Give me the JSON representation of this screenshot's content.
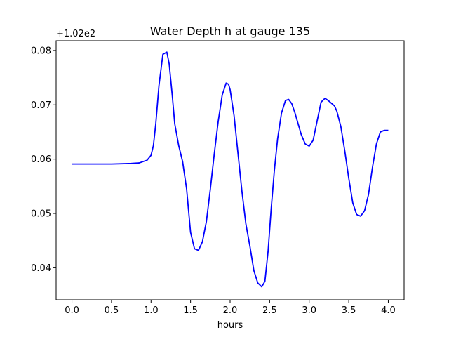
{
  "chart_data": {
    "type": "line",
    "title": "Water Depth h at gauge 135",
    "xlabel": "hours",
    "ylabel": "",
    "offset_label": "+1.02e2",
    "xlim": [
      -0.2,
      4.2
    ],
    "ylim": [
      0.0341,
      0.0818
    ],
    "x_ticks": [
      0.0,
      0.5,
      1.0,
      1.5,
      2.0,
      2.5,
      3.0,
      3.5,
      4.0
    ],
    "x_tick_labels": [
      "0.0",
      "0.5",
      "1.0",
      "1.5",
      "2.0",
      "2.5",
      "3.0",
      "3.5",
      "4.0"
    ],
    "y_ticks": [
      0.04,
      0.05,
      0.06,
      0.07,
      0.08
    ],
    "y_tick_labels": [
      "0.04",
      "0.05",
      "0.06",
      "0.07",
      "0.08"
    ],
    "grid": false,
    "series": [
      {
        "color": "#0000ff",
        "x": [
          0.0,
          0.25,
          0.5,
          0.75,
          0.85,
          0.95,
          1.0,
          1.03,
          1.06,
          1.1,
          1.15,
          1.2,
          1.23,
          1.27,
          1.3,
          1.35,
          1.4,
          1.45,
          1.5,
          1.55,
          1.6,
          1.65,
          1.7,
          1.75,
          1.8,
          1.85,
          1.9,
          1.95,
          1.98,
          2.0,
          2.05,
          2.1,
          2.15,
          2.2,
          2.25,
          2.3,
          2.35,
          2.4,
          2.44,
          2.48,
          2.52,
          2.56,
          2.6,
          2.65,
          2.7,
          2.74,
          2.78,
          2.82,
          2.86,
          2.9,
          2.95,
          3.0,
          3.05,
          3.1,
          3.15,
          3.2,
          3.24,
          3.28,
          3.32,
          3.35,
          3.4,
          3.45,
          3.5,
          3.55,
          3.6,
          3.65,
          3.7,
          3.75,
          3.8,
          3.85,
          3.9,
          3.95,
          4.0
        ],
        "y": [
          0.0591,
          0.0591,
          0.0591,
          0.0592,
          0.0593,
          0.0598,
          0.0607,
          0.0625,
          0.0665,
          0.0735,
          0.0793,
          0.0797,
          0.0775,
          0.0715,
          0.0665,
          0.0625,
          0.0595,
          0.0545,
          0.0465,
          0.0435,
          0.0432,
          0.0448,
          0.0485,
          0.0545,
          0.061,
          0.067,
          0.0718,
          0.074,
          0.0738,
          0.0728,
          0.068,
          0.061,
          0.054,
          0.048,
          0.044,
          0.0395,
          0.0372,
          0.0365,
          0.0375,
          0.043,
          0.051,
          0.058,
          0.0637,
          0.0685,
          0.0708,
          0.071,
          0.0702,
          0.0685,
          0.0665,
          0.0645,
          0.0628,
          0.0624,
          0.0635,
          0.067,
          0.0705,
          0.0712,
          0.0708,
          0.0703,
          0.0698,
          0.0688,
          0.066,
          0.0615,
          0.0565,
          0.052,
          0.0498,
          0.0495,
          0.0505,
          0.0535,
          0.0585,
          0.0628,
          0.065,
          0.0653,
          0.0653
        ]
      }
    ]
  }
}
